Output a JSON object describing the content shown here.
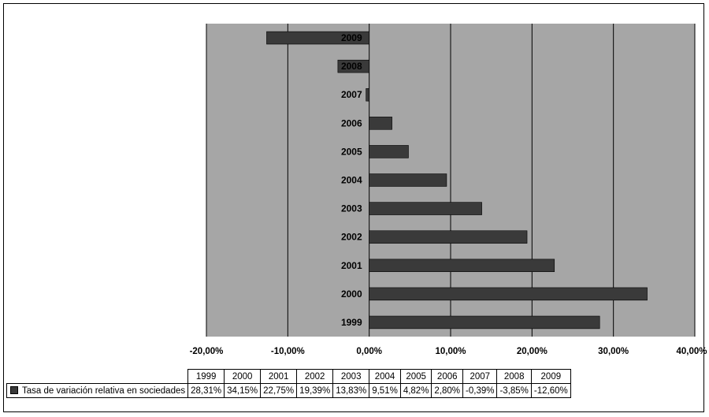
{
  "chart_data": {
    "type": "bar",
    "orientation": "horizontal",
    "categories": [
      "1999",
      "2000",
      "2001",
      "2002",
      "2003",
      "2004",
      "2005",
      "2006",
      "2007",
      "2008",
      "2009"
    ],
    "series": [
      {
        "name": "Tasa de variación relativa en sociedades",
        "values": [
          28.31,
          34.15,
          22.75,
          19.39,
          13.83,
          9.51,
          4.82,
          2.8,
          -0.39,
          -3.85,
          -12.6
        ],
        "value_labels": [
          "28,31%",
          "34,15%",
          "22,75%",
          "19,39%",
          "13,83%",
          "9,51%",
          "4,82%",
          "2,80%",
          "-0,39%",
          "-3,85%",
          "-12,60%"
        ]
      }
    ],
    "xlim": [
      -20,
      40
    ],
    "x_ticks": [
      -20,
      -10,
      0,
      10,
      20,
      30,
      40
    ],
    "x_tick_labels": [
      "-20,00%",
      "-10,00%",
      "0,00%",
      "10,00%",
      "20,00%",
      "30,00%",
      "40,00%"
    ],
    "gridlines": true,
    "legend": "data-table",
    "title": "",
    "xlabel": "",
    "ylabel": ""
  },
  "colors": {
    "plot_background": "#a6a6a6",
    "bar_fill": "#3a3a3a",
    "gridline": "#000000"
  }
}
